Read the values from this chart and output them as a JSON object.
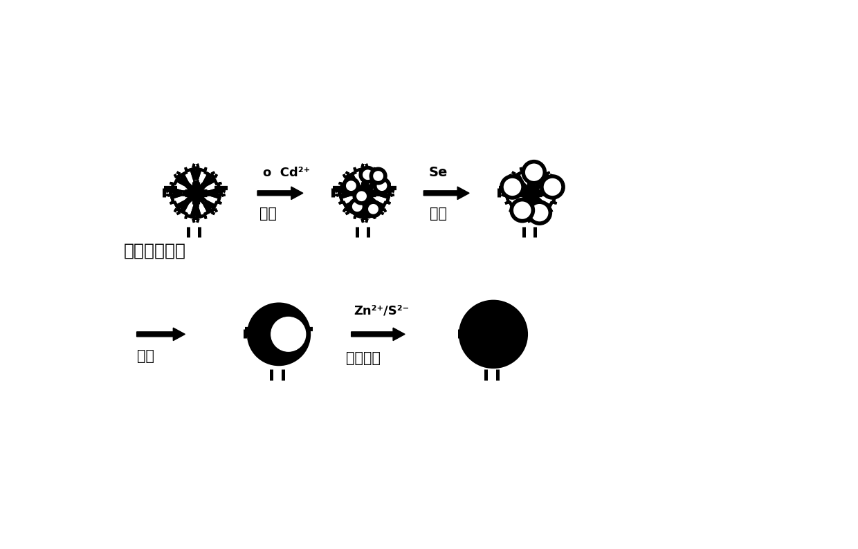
{
  "bg_color": "#ffffff",
  "line_color": "#000000",
  "label1": "超支化聚合物",
  "label2": "吸附",
  "label3": "成核",
  "label4": "生长",
  "label5": "生长壳层",
  "arrow1_above": "o  Cd²⁺",
  "arrow2_above": "Se",
  "arrow3_above": "Zn²⁺/S²⁻",
  "lw": 4.5,
  "figsize": [
    12.4,
    7.94
  ]
}
